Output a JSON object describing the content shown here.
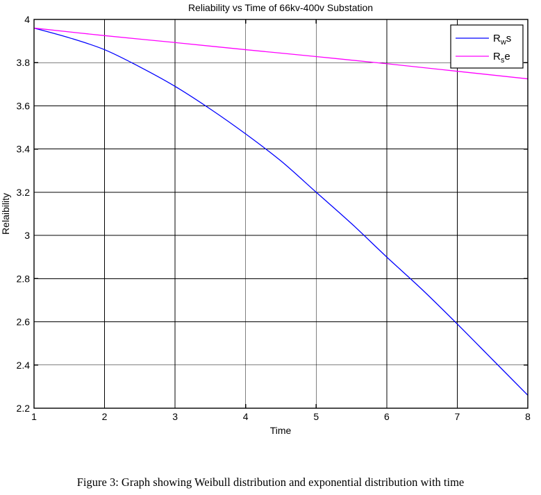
{
  "figure": {
    "caption": "Figure 3: Graph showing Weibull distribution and exponential distribution with time"
  },
  "chart_data": {
    "type": "line",
    "title": "Reliability vs Time of 66kv-400v Substation",
    "xlabel": "Time",
    "ylabel": "Relaibility",
    "xlim": [
      1,
      8
    ],
    "ylim": [
      2.2,
      4
    ],
    "xticks": [
      1,
      2,
      3,
      4,
      5,
      6,
      7,
      8
    ],
    "yticks": [
      2.2,
      2.4,
      2.6,
      2.8,
      3,
      3.2,
      3.4,
      3.6,
      3.8,
      4
    ],
    "grid": true,
    "colors": {
      "background": "#ffffff",
      "axis": "#000000",
      "grid": "#000000",
      "weibull_line": "#0000ff",
      "exponential_line": "#ff00ff"
    },
    "legend": {
      "position": "top-right",
      "entries": [
        {
          "label": "Rws",
          "base": "R",
          "sub": "w",
          "rest": "s",
          "color": "#0000ff"
        },
        {
          "label": "Rse",
          "base": "R",
          "sub": "s",
          "rest": "e",
          "color": "#ff00ff"
        }
      ]
    },
    "series": [
      {
        "name": "Rws",
        "distribution": "Weibull",
        "color": "#0000ff",
        "x": [
          1,
          1.5,
          2,
          2.5,
          3,
          3.5,
          4,
          4.5,
          5,
          5.5,
          6,
          6.5,
          7,
          7.5,
          8
        ],
        "y": [
          3.96,
          3.915,
          3.86,
          3.78,
          3.69,
          3.585,
          3.47,
          3.345,
          3.2,
          3.055,
          2.9,
          2.75,
          2.59,
          2.425,
          2.26
        ]
      },
      {
        "name": "Rse",
        "distribution": "exponential",
        "color": "#ff00ff",
        "x": [
          1,
          2,
          3,
          4,
          5,
          6,
          7,
          8
        ],
        "y": [
          3.96,
          3.925,
          3.893,
          3.86,
          3.828,
          3.795,
          3.76,
          3.725
        ]
      }
    ]
  }
}
